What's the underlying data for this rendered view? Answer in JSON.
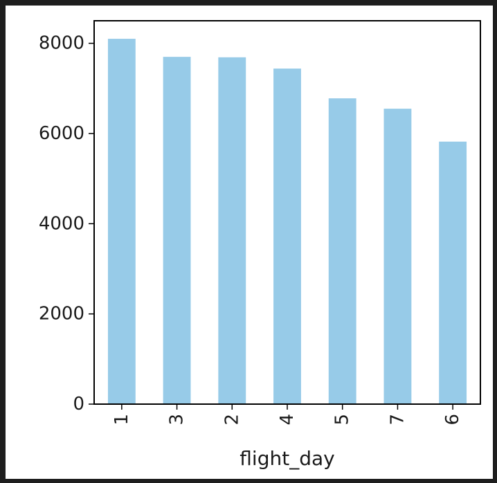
{
  "chart_data": {
    "type": "bar",
    "categories": [
      "1",
      "3",
      "2",
      "4",
      "5",
      "7",
      "6"
    ],
    "values": [
      8100,
      7700,
      7690,
      7440,
      6780,
      6550,
      5820
    ],
    "xlabel": "flight_day",
    "ylabel": "",
    "ylim": [
      0,
      8500
    ],
    "yticks": [
      0,
      2000,
      4000,
      6000,
      8000
    ],
    "grid": false,
    "bar_color": "#97cbe8",
    "tick_rotation_x": -90
  },
  "background": "#1e1e1e"
}
